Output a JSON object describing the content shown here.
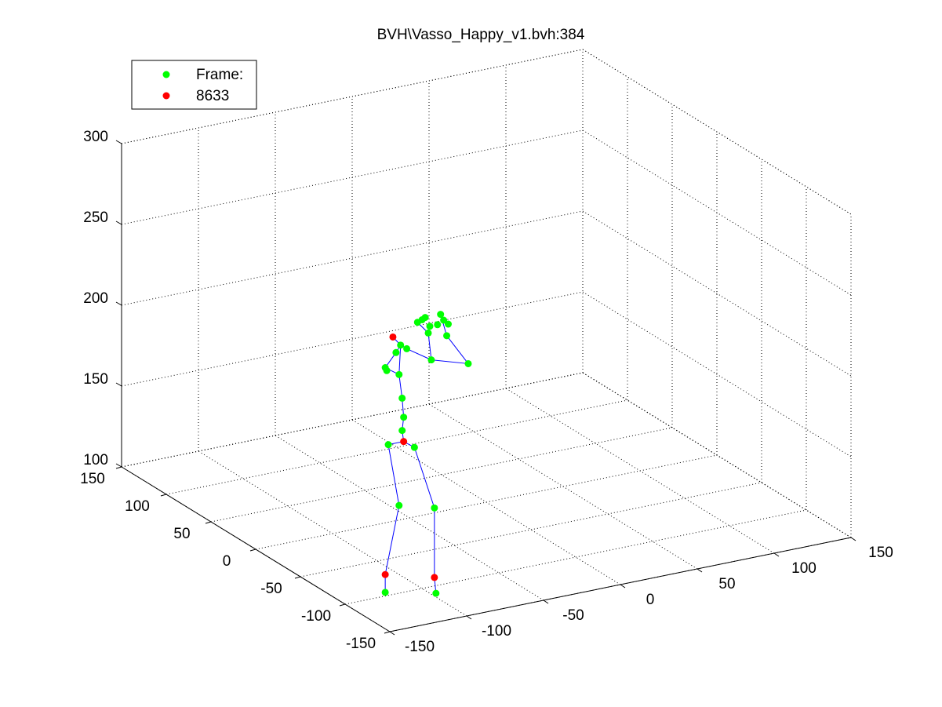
{
  "chart_data": {
    "type": "scatter3d",
    "title": "BVH\\Vasso_Happy_v1.bvh:384",
    "series": [
      {
        "name": "Frame:",
        "color": "#00ff00",
        "x": [
          -121,
          -88,
          -112,
          -89,
          -119,
          -102,
          -110,
          -109,
          -110,
          -112,
          -120,
          -121,
          -114,
          -111,
          -107,
          -91,
          -67,
          -81,
          -93,
          -100,
          -95,
          -85,
          -83,
          -87,
          -92,
          -97,
          -80
        ],
        "y": [
          -95,
          -95,
          -95,
          -95,
          -95,
          -95,
          -95,
          -95,
          -95,
          -95,
          -95,
          -95,
          -95,
          -95,
          -95,
          -95,
          -95,
          -95,
          -95,
          -95,
          -95,
          -95,
          -95,
          -95,
          -95,
          -95,
          -95
        ],
        "z": [
          100,
          93,
          152,
          146,
          191,
          186,
          198,
          206,
          218,
          233,
          237,
          239,
          247,
          251,
          248,
          238,
          231,
          251,
          255,
          263,
          265,
          265,
          261,
          259,
          259,
          264,
          258
        ]
      },
      {
        "name": "8633",
        "color": "#ff0000",
        "x": [
          -116,
          -109,
          -121,
          -89
        ],
        "y": [
          -95,
          -95,
          -95,
          -95
        ],
        "z": [
          257,
          191,
          111,
          103
        ]
      }
    ],
    "line_color": "#0000ff",
    "xlim": [
      -150,
      150
    ],
    "ylim": [
      -150,
      150
    ],
    "zlim": [
      100,
      300
    ],
    "xticks": [
      -150,
      -100,
      -50,
      0,
      50,
      100,
      150
    ],
    "yticks": [
      -150,
      -100,
      -50,
      0,
      50,
      100,
      150
    ],
    "zticks": [
      100,
      150,
      200,
      250,
      300
    ],
    "grid": true,
    "legend": "upper left"
  }
}
